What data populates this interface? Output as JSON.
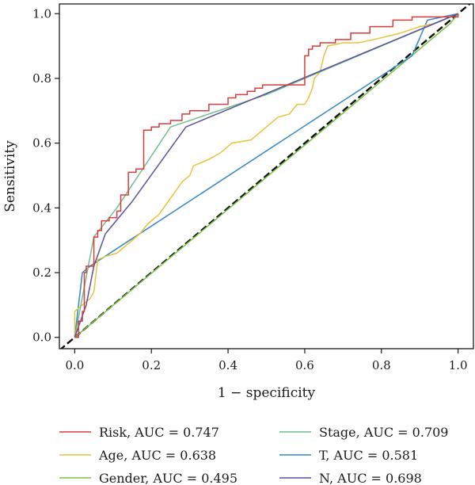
{
  "chart_data": {
    "type": "line",
    "xlabel": "1 − specificity",
    "ylabel": "Sensitivity",
    "xlim": [
      -0.04,
      1.04
    ],
    "ylim": [
      -0.035,
      1.03
    ],
    "xticks": [
      "0.0",
      "0.2",
      "0.4",
      "0.6",
      "0.8",
      "1.0"
    ],
    "yticks": [
      "0.0",
      "0.2",
      "0.4",
      "0.6",
      "0.8",
      "1.0"
    ],
    "legend_position": "bottom",
    "diagonal_reference": true,
    "series": [
      {
        "name": "Risk, AUC = 0.747",
        "color": "#d93b3b",
        "step": true,
        "points": [
          [
            0,
            0
          ],
          [
            0.01,
            0
          ],
          [
            0.01,
            0.05
          ],
          [
            0.02,
            0.05
          ],
          [
            0.02,
            0.08
          ],
          [
            0.025,
            0.08
          ],
          [
            0.025,
            0.2
          ],
          [
            0.03,
            0.2
          ],
          [
            0.03,
            0.22
          ],
          [
            0.05,
            0.22
          ],
          [
            0.05,
            0.31
          ],
          [
            0.06,
            0.31
          ],
          [
            0.06,
            0.33
          ],
          [
            0.07,
            0.33
          ],
          [
            0.07,
            0.36
          ],
          [
            0.09,
            0.36
          ],
          [
            0.09,
            0.37
          ],
          [
            0.11,
            0.37
          ],
          [
            0.11,
            0.39
          ],
          [
            0.12,
            0.39
          ],
          [
            0.12,
            0.44
          ],
          [
            0.14,
            0.44
          ],
          [
            0.14,
            0.51
          ],
          [
            0.16,
            0.51
          ],
          [
            0.16,
            0.52
          ],
          [
            0.18,
            0.52
          ],
          [
            0.18,
            0.64
          ],
          [
            0.2,
            0.64
          ],
          [
            0.2,
            0.65
          ],
          [
            0.22,
            0.65
          ],
          [
            0.22,
            0.66
          ],
          [
            0.25,
            0.66
          ],
          [
            0.25,
            0.67
          ],
          [
            0.28,
            0.67
          ],
          [
            0.28,
            0.69
          ],
          [
            0.3,
            0.69
          ],
          [
            0.3,
            0.7
          ],
          [
            0.35,
            0.7
          ],
          [
            0.35,
            0.72
          ],
          [
            0.4,
            0.72
          ],
          [
            0.4,
            0.74
          ],
          [
            0.42,
            0.74
          ],
          [
            0.42,
            0.75
          ],
          [
            0.45,
            0.75
          ],
          [
            0.45,
            0.76
          ],
          [
            0.47,
            0.76
          ],
          [
            0.47,
            0.77
          ],
          [
            0.49,
            0.77
          ],
          [
            0.49,
            0.78
          ],
          [
            0.6,
            0.78
          ],
          [
            0.6,
            0.87
          ],
          [
            0.61,
            0.87
          ],
          [
            0.61,
            0.89
          ],
          [
            0.62,
            0.89
          ],
          [
            0.62,
            0.9
          ],
          [
            0.64,
            0.9
          ],
          [
            0.64,
            0.91
          ],
          [
            0.68,
            0.91
          ],
          [
            0.68,
            0.92
          ],
          [
            0.72,
            0.92
          ],
          [
            0.72,
            0.94
          ],
          [
            0.77,
            0.94
          ],
          [
            0.77,
            0.96
          ],
          [
            0.83,
            0.96
          ],
          [
            0.83,
            0.98
          ],
          [
            0.88,
            0.98
          ],
          [
            0.88,
            0.99
          ],
          [
            1,
            0.99
          ],
          [
            1,
            1
          ]
        ]
      },
      {
        "name": "Age, AUC = 0.638",
        "color": "#e8c23c",
        "step": false,
        "points": [
          [
            0,
            0
          ],
          [
            0,
            0.08
          ],
          [
            0.02,
            0.1
          ],
          [
            0.04,
            0.12
          ],
          [
            0.05,
            0.14
          ],
          [
            0.06,
            0.24
          ],
          [
            0.08,
            0.25
          ],
          [
            0.11,
            0.26
          ],
          [
            0.14,
            0.29
          ],
          [
            0.17,
            0.32
          ],
          [
            0.19,
            0.35
          ],
          [
            0.22,
            0.38
          ],
          [
            0.25,
            0.43
          ],
          [
            0.28,
            0.48
          ],
          [
            0.3,
            0.5
          ],
          [
            0.31,
            0.53
          ],
          [
            0.33,
            0.54
          ],
          [
            0.35,
            0.55
          ],
          [
            0.38,
            0.57
          ],
          [
            0.41,
            0.6
          ],
          [
            0.46,
            0.61
          ],
          [
            0.53,
            0.68
          ],
          [
            0.56,
            0.69
          ],
          [
            0.58,
            0.72
          ],
          [
            0.6,
            0.72
          ],
          [
            0.61,
            0.74
          ],
          [
            0.62,
            0.77
          ],
          [
            0.625,
            0.8
          ],
          [
            0.64,
            0.82
          ],
          [
            0.65,
            0.87
          ],
          [
            0.66,
            0.9
          ],
          [
            0.7,
            0.91
          ],
          [
            0.74,
            0.91
          ],
          [
            0.78,
            0.92
          ],
          [
            0.85,
            0.94
          ],
          [
            0.9,
            0.96
          ],
          [
            0.94,
            0.97
          ],
          [
            1,
            1
          ]
        ]
      },
      {
        "name": "Gender, AUC = 0.495",
        "color": "#7cc242",
        "step": false,
        "points": [
          [
            0,
            0
          ],
          [
            0.98,
            0.97
          ],
          [
            1,
            1
          ]
        ]
      },
      {
        "name": "Stage, AUC = 0.709",
        "color": "#6dbf8d",
        "step": false,
        "points": [
          [
            0,
            0
          ],
          [
            0.05,
            0.31
          ],
          [
            0.07,
            0.34
          ],
          [
            0.11,
            0.4
          ],
          [
            0.25,
            0.65
          ],
          [
            0.5,
            0.75
          ],
          [
            1,
            1
          ]
        ]
      },
      {
        "name": "T, AUC = 0.581",
        "color": "#3488c2",
        "step": false,
        "points": [
          [
            0,
            0
          ],
          [
            0.02,
            0.2
          ],
          [
            0.04,
            0.22
          ],
          [
            0.88,
            0.87
          ],
          [
            0.92,
            0.98
          ],
          [
            1,
            1
          ]
        ]
      },
      {
        "name": "N, AUC = 0.698",
        "color": "#5b4f9e",
        "step": false,
        "points": [
          [
            0,
            0
          ],
          [
            0.03,
            0.1
          ],
          [
            0.05,
            0.22
          ],
          [
            0.08,
            0.32
          ],
          [
            0.15,
            0.42
          ],
          [
            0.29,
            0.65
          ],
          [
            1,
            1
          ]
        ]
      }
    ]
  }
}
